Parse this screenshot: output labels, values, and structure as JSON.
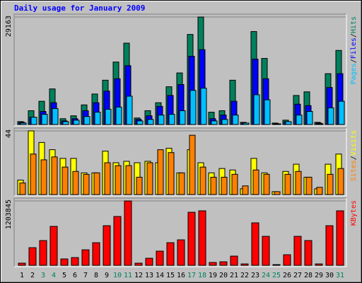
{
  "chart_data": [
    {
      "type": "bar",
      "title": "Daily usage for January 2009",
      "ylim": [
        0,
        29163
      ],
      "yticks": [
        29163
      ],
      "legend_separator": "/",
      "series": [
        {
          "name": "Hits",
          "color": "#00805c",
          "values": [
            784,
            3743,
            6304,
            9653,
            1576,
            2364,
            5319,
            8274,
            12017,
            16942,
            22064,
            1773,
            3743,
            5910,
            10244,
            13987,
            24428,
            29163,
            3349,
            3743,
            12017,
            591,
            25216,
            17927,
            394,
            1182,
            7880,
            8865,
            591,
            13790,
            20094
          ]
        },
        {
          "name": "Files",
          "color": "#0000ff",
          "values": [
            591,
            1970,
            3546,
            5910,
            985,
            1576,
            3743,
            5910,
            9062,
            12411,
            15957,
            1379,
            2364,
            4925,
            7880,
            10835,
            18518,
            20291,
            1576,
            2561,
            6304,
            394,
            17730,
            12411,
            197,
            788,
            5516,
            5122,
            394,
            10047,
            13790
          ]
        },
        {
          "name": "Pages",
          "color": "#00c0ff",
          "values": [
            394,
            1970,
            2758,
            4334,
            788,
            1182,
            2167,
            3349,
            4137,
            4728,
            7683,
            985,
            1379,
            2561,
            2758,
            3743,
            9259,
            9850,
            985,
            1379,
            2561,
            394,
            8077,
            6698,
            197,
            788,
            2561,
            3546,
            197,
            4531,
            6304
          ]
        }
      ]
    },
    {
      "type": "bar",
      "ylim": [
        0,
        44
      ],
      "yticks": [
        44
      ],
      "legend_separator": "/",
      "series": [
        {
          "name": "Visits",
          "color": "#ffff00",
          "values": [
            10,
            44,
            36,
            31,
            25,
            25,
            15,
            15,
            30,
            22,
            23,
            22,
            23,
            22,
            32,
            15,
            31,
            22,
            15,
            18,
            17,
            4,
            25,
            15,
            2,
            16,
            21,
            12,
            4,
            21,
            28
          ]
        },
        {
          "name": "Sites",
          "color": "#ff8000",
          "values": [
            8,
            28,
            24,
            26,
            19,
            16,
            14,
            15,
            22,
            20,
            20,
            12,
            22,
            31,
            29,
            15,
            41,
            19,
            12,
            12,
            14,
            6,
            17,
            14,
            2,
            14,
            16,
            12,
            5,
            14,
            18
          ]
        }
      ]
    },
    {
      "type": "bar",
      "ylim": [
        0,
        1203845
      ],
      "yticks": [
        1203845
      ],
      "categories": [
        "1",
        "2",
        "3",
        "4",
        "5",
        "6",
        "7",
        "8",
        "9",
        "10",
        "11",
        "12",
        "13",
        "14",
        "15",
        "16",
        "17",
        "18",
        "19",
        "20",
        "21",
        "22",
        "23",
        "24",
        "25",
        "26",
        "27",
        "28",
        "29",
        "30",
        "31"
      ],
      "category_colors": [
        "#000000",
        "#000000",
        "#00805c",
        "#00805c",
        "#000000",
        "#000000",
        "#000000",
        "#000000",
        "#000000",
        "#00805c",
        "#00805c",
        "#000000",
        "#000000",
        "#000000",
        "#000000",
        "#000000",
        "#00805c",
        "#00805c",
        "#000000",
        "#000000",
        "#000000",
        "#000000",
        "#000000",
        "#00805c",
        "#00805c",
        "#000000",
        "#000000",
        "#000000",
        "#000000",
        "#000000",
        "#00805c"
      ],
      "series": [
        {
          "name": "KBytes",
          "color": "#ff0000",
          "values": [
            40000,
            330000,
            463000,
            728000,
            119000,
            145000,
            290000,
            423000,
            741000,
            913000,
            1203845,
            40000,
            132000,
            265000,
            423000,
            476000,
            992000,
            1019000,
            53000,
            66000,
            172000,
            26000,
            794000,
            542000,
            13000,
            198000,
            542000,
            463000,
            26000,
            741000,
            1019000
          ]
        }
      ]
    }
  ]
}
